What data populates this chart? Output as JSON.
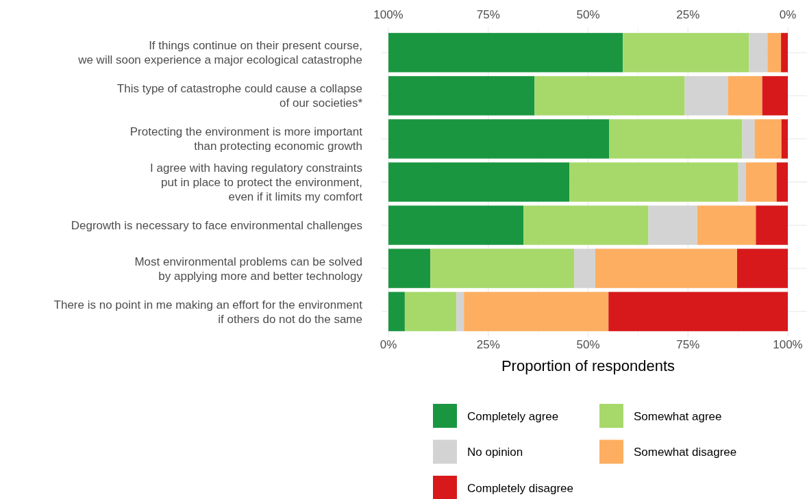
{
  "chart_data": {
    "type": "bar",
    "orientation": "horizontal",
    "stacked": true,
    "xlabel": "Proportion of respondents",
    "categories": [
      "If things continue on their present course,\nwe will soon experience a major ecological catastrophe",
      "This type of catastrophe could cause a collapse\nof our societies*",
      "Protecting the environment is more important\nthan protecting economic growth",
      "I agree with having regulatory constraints\nput in place to protect the environment,\neven if it limits my comfort",
      "Degrowth is necessary to face environmental challenges",
      "Most environmental problems can be solved\nby applying more and better technology",
      "There is no point in me making an effort for the environment\nif others do not do the same"
    ],
    "series": [
      {
        "name": "Completely agree",
        "color": "#1a9641",
        "values": [
          58.7,
          36.6,
          55.3,
          45.3,
          33.8,
          10.5,
          4.1
        ]
      },
      {
        "name": "Somewhat agree",
        "color": "#a6d96a",
        "values": [
          31.6,
          37.6,
          33.3,
          42.3,
          31.3,
          36.0,
          12.9
        ]
      },
      {
        "name": "No opinion",
        "color": "#d3d3d3",
        "values": [
          4.6,
          10.8,
          3.1,
          1.9,
          12.2,
          5.3,
          1.9
        ]
      },
      {
        "name": "Somewhat disagree",
        "color": "#fdae61",
        "values": [
          3.4,
          8.6,
          6.7,
          7.7,
          14.7,
          35.5,
          36.2
        ]
      },
      {
        "name": "Completely disagree",
        "color": "#d7191c",
        "values": [
          1.7,
          6.4,
          1.6,
          2.8,
          8.0,
          12.7,
          44.9
        ]
      }
    ],
    "xlim": [
      0,
      100
    ],
    "xticks": [
      {
        "value": 0,
        "label": "0%"
      },
      {
        "value": 25,
        "label": "25%"
      },
      {
        "value": 50,
        "label": "50%"
      },
      {
        "value": 75,
        "label": "75%"
      },
      {
        "value": 100,
        "label": "100%"
      }
    ],
    "x2lim": [
      100,
      0
    ],
    "x2ticks": [
      {
        "value": 100,
        "label": "100%"
      },
      {
        "value": 75,
        "label": "75%"
      },
      {
        "value": 50,
        "label": "50%"
      },
      {
        "value": 25,
        "label": "25%"
      },
      {
        "value": 0,
        "label": "0%"
      }
    ],
    "grid": true,
    "legend": "bottom"
  }
}
